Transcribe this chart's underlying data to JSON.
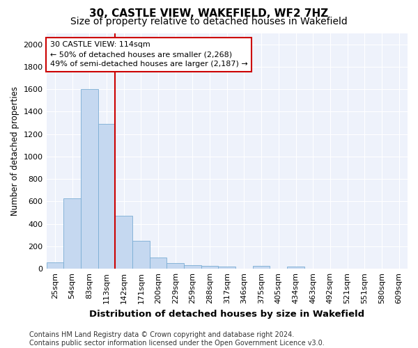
{
  "title": "30, CASTLE VIEW, WAKEFIELD, WF2 7HZ",
  "subtitle": "Size of property relative to detached houses in Wakefield",
  "xlabel": "Distribution of detached houses by size in Wakefield",
  "ylabel": "Number of detached properties",
  "categories": [
    "25sqm",
    "54sqm",
    "83sqm",
    "113sqm",
    "142sqm",
    "171sqm",
    "200sqm",
    "229sqm",
    "259sqm",
    "288sqm",
    "317sqm",
    "346sqm",
    "375sqm",
    "405sqm",
    "434sqm",
    "463sqm",
    "492sqm",
    "521sqm",
    "551sqm",
    "580sqm",
    "609sqm"
  ],
  "values": [
    60,
    630,
    1600,
    1290,
    475,
    248,
    100,
    50,
    30,
    25,
    20,
    0,
    25,
    0,
    20,
    0,
    0,
    0,
    0,
    0,
    0
  ],
  "bar_color": "#c5d8f0",
  "bar_edge_color": "#7aadd4",
  "vline_x_idx": 3,
  "vline_color": "#cc0000",
  "annotation_text": "30 CASTLE VIEW: 114sqm\n← 50% of detached houses are smaller (2,268)\n49% of semi-detached houses are larger (2,187) →",
  "annotation_box_facecolor": "#ffffff",
  "annotation_box_edgecolor": "#cc0000",
  "ylim": [
    0,
    2100
  ],
  "yticks": [
    0,
    200,
    400,
    600,
    800,
    1000,
    1200,
    1400,
    1600,
    1800,
    2000
  ],
  "bg_color": "#eef2fb",
  "grid_color": "#ffffff",
  "footer": "Contains HM Land Registry data © Crown copyright and database right 2024.\nContains public sector information licensed under the Open Government Licence v3.0.",
  "title_fontsize": 11,
  "subtitle_fontsize": 10,
  "xlabel_fontsize": 9.5,
  "ylabel_fontsize": 8.5,
  "tick_fontsize": 8,
  "footer_fontsize": 7,
  "annot_fontsize": 8
}
